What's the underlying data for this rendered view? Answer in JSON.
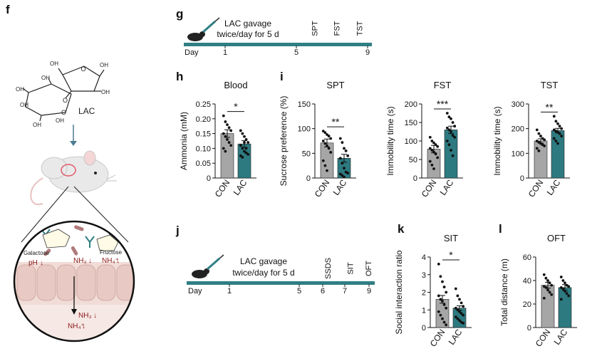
{
  "panel_letters": {
    "f": "f",
    "g": "g",
    "h": "h",
    "i": "i",
    "j": "j",
    "k": "k",
    "l": "l"
  },
  "illustration_f": {
    "compound_label": "LAC",
    "oh_labels": [
      "OH",
      "OH",
      "OH",
      "OH",
      "OH",
      "OH",
      "OH",
      "OH"
    ],
    "gut_labels": {
      "galactose": "Galactose",
      "fructose": "Fructose",
      "ph": "pH",
      "nh3": "NH₃",
      "nh4": "NH₄⁺",
      "nh3_down": "NH₃",
      "nh4_down": "NH₄⁺"
    }
  },
  "timeline_g": {
    "text": [
      "LAC gavage",
      "twice/day for 5 d"
    ],
    "tests": [
      "SPT",
      "FST",
      "TST"
    ],
    "day_label": "Day",
    "days": [
      "1",
      "5",
      "9"
    ]
  },
  "timeline_j": {
    "text": [
      "LAC gavage",
      "twice/day for 5 d"
    ],
    "tests": [
      "SSDS",
      "SIT",
      "OFT"
    ],
    "day_label": "Day",
    "days": [
      "1",
      "5",
      "6",
      "7",
      "9"
    ]
  },
  "colors": {
    "CON": "#a6a6a6",
    "LAC": "#2d7a80",
    "accent": "#2e7f84",
    "arrow": "#8b1a1a"
  },
  "chart_data": [
    {
      "id": "h",
      "type": "bar",
      "title": "Blood",
      "ylabel": "Ammonia (mM)",
      "categories": [
        "CON",
        "LAC"
      ],
      "values": [
        0.15,
        0.115
      ],
      "errors": [
        0.013,
        0.011
      ],
      "ylim": [
        0,
        0.25
      ],
      "yticks": [
        "0",
        "0.05",
        "0.10",
        "0.15",
        "0.20",
        "0.25"
      ],
      "significance": "*",
      "points": [
        [
          0.21,
          0.19,
          0.18,
          0.17,
          0.16,
          0.15,
          0.14,
          0.13,
          0.12,
          0.11,
          0.1,
          0.09
        ],
        [
          0.16,
          0.15,
          0.14,
          0.13,
          0.12,
          0.11,
          0.1,
          0.09,
          0.085,
          0.08,
          0.075,
          0.07,
          0.12,
          0.1
        ]
      ]
    },
    {
      "id": "i-spt",
      "type": "bar",
      "title": "SPT",
      "ylabel": "Sucrose preference (%)",
      "categories": [
        "CON",
        "LAC"
      ],
      "values": [
        71,
        40
      ],
      "errors": [
        8,
        8
      ],
      "ylim": [
        0,
        150
      ],
      "yticks": [
        "0",
        "50",
        "100",
        "150"
      ],
      "significance": "**",
      "points": [
        [
          95,
          92,
          88,
          85,
          80,
          75,
          70,
          65,
          60,
          52,
          35,
          25,
          15
        ],
        [
          80,
          72,
          60,
          55,
          45,
          40,
          30,
          20,
          12,
          10,
          8,
          5,
          2
        ]
      ]
    },
    {
      "id": "i-fst",
      "type": "bar",
      "title": "FST",
      "ylabel": "Immobility time (s)",
      "categories": [
        "CON",
        "LAC"
      ],
      "values": [
        78,
        130
      ],
      "errors": [
        10,
        10
      ],
      "ylim": [
        0,
        200
      ],
      "yticks": [
        "0",
        "50",
        "100",
        "150",
        "200"
      ],
      "significance": "***",
      "points": [
        [
          110,
          100,
          95,
          90,
          85,
          80,
          75,
          70,
          65,
          55,
          45,
          35,
          25
        ],
        [
          175,
          165,
          160,
          150,
          140,
          135,
          130,
          125,
          115,
          110,
          100,
          90,
          75,
          60
        ]
      ]
    },
    {
      "id": "i-tst",
      "type": "bar",
      "title": "TST",
      "ylabel": "Immobility time (s)",
      "categories": [
        "CON",
        "LAC"
      ],
      "values": [
        150,
        192
      ],
      "errors": [
        9,
        9
      ],
      "ylim": [
        0,
        300
      ],
      "yticks": [
        "0",
        "100",
        "200",
        "300"
      ],
      "significance": "**",
      "points": [
        [
          195,
          180,
          170,
          160,
          155,
          150,
          145,
          140,
          135,
          130,
          120,
          110
        ],
        [
          250,
          230,
          220,
          210,
          200,
          195,
          190,
          185,
          180,
          170,
          160,
          150,
          140
        ]
      ]
    },
    {
      "id": "k",
      "type": "bar",
      "title": "SIT",
      "ylabel": "Social interaction ratio",
      "categories": [
        "CON",
        "LAC"
      ],
      "values": [
        1.6,
        1.1
      ],
      "errors": [
        0.22,
        0.13
      ],
      "ylim": [
        0,
        4
      ],
      "yticks": [
        "0",
        "1",
        "2",
        "3",
        "4"
      ],
      "significance": "*",
      "points": [
        [
          3.6,
          2.9,
          2.6,
          2.3,
          2.0,
          1.8,
          1.6,
          1.5,
          1.3,
          1.1,
          0.9,
          0.7,
          0.5,
          0.3,
          0.15
        ],
        [
          2.2,
          1.8,
          1.6,
          1.4,
          1.2,
          1.1,
          1.0,
          0.9,
          0.8,
          0.7,
          0.6,
          0.5,
          0.4,
          0.3,
          0.25
        ]
      ]
    },
    {
      "id": "l",
      "type": "bar",
      "title": "OFT",
      "ylabel": "Total distance (m)",
      "categories": [
        "CON",
        "LAC"
      ],
      "values": [
        36,
        34
      ],
      "errors": [
        2.5,
        2.5
      ],
      "ylim": [
        0,
        60
      ],
      "yticks": [
        "0",
        "20",
        "40",
        "60"
      ],
      "significance": "",
      "points": [
        [
          45,
          42,
          40,
          38,
          36,
          35,
          34,
          32,
          30,
          28,
          25
        ],
        [
          43,
          40,
          38,
          36,
          35,
          34,
          33,
          31,
          29,
          27,
          24
        ]
      ]
    }
  ]
}
